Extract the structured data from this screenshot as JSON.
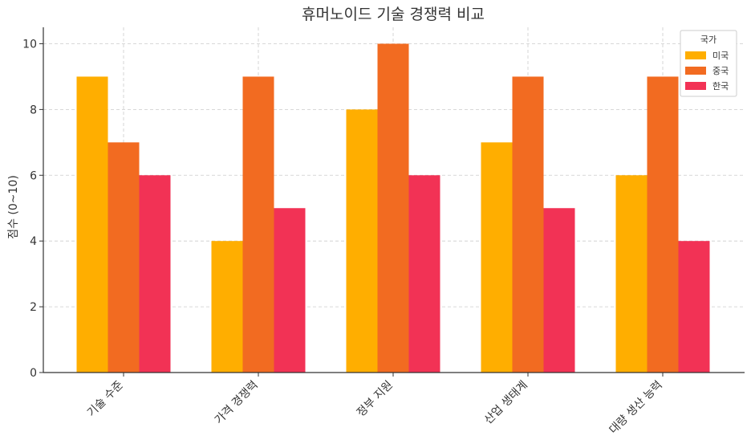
{
  "chart_data": {
    "type": "bar",
    "title": "휴머노이드 기술 경쟁력 비교",
    "xlabel": "",
    "ylabel": "점수 (0~10)",
    "categories": [
      "기술 수준",
      "가격 경쟁력",
      "정부 지원",
      "산업 생태계",
      "대량 생산 능력"
    ],
    "series": [
      {
        "name": "미국",
        "values": [
          9,
          4,
          8,
          7,
          6
        ],
        "color": "#FFAE00"
      },
      {
        "name": "중국",
        "values": [
          7,
          9,
          10,
          9,
          9
        ],
        "color": "#F26B21"
      },
      {
        "name": "한국",
        "values": [
          6,
          5,
          6,
          5,
          4
        ],
        "color": "#F23255"
      }
    ],
    "ylim": [
      0,
      10.5
    ],
    "yticks": [
      0,
      2,
      4,
      6,
      8,
      10
    ],
    "grid": true,
    "legend": {
      "title": "국가",
      "placement": "top-right"
    }
  }
}
